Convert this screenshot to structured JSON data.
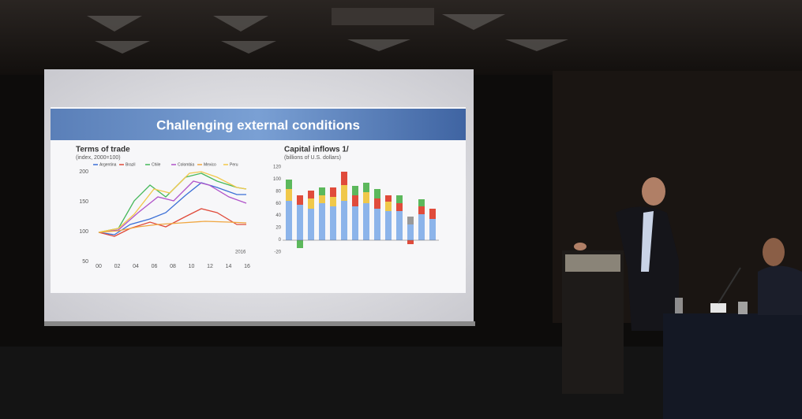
{
  "slide": {
    "title": "Challenging external conditions",
    "left_chart": {
      "title": "Terms of trade",
      "subtitle": "(index, 2000=100)",
      "legend": [
        "Argentina",
        "Brazil",
        "Chile",
        "Colombia",
        "Mexico",
        "Peru"
      ],
      "yticks": [
        "200",
        "150",
        "100",
        "50"
      ],
      "xticks": [
        "00",
        "02",
        "04",
        "06",
        "08",
        "10",
        "12",
        "14",
        "16"
      ],
      "annotation": "2016"
    },
    "right_chart": {
      "title": "Capital inflows 1/",
      "subtitle": "(billions of U.S. dollars)",
      "yticks": [
        "120",
        "100",
        "80",
        "60",
        "40",
        "20",
        "0",
        "-20"
      ]
    }
  }
}
